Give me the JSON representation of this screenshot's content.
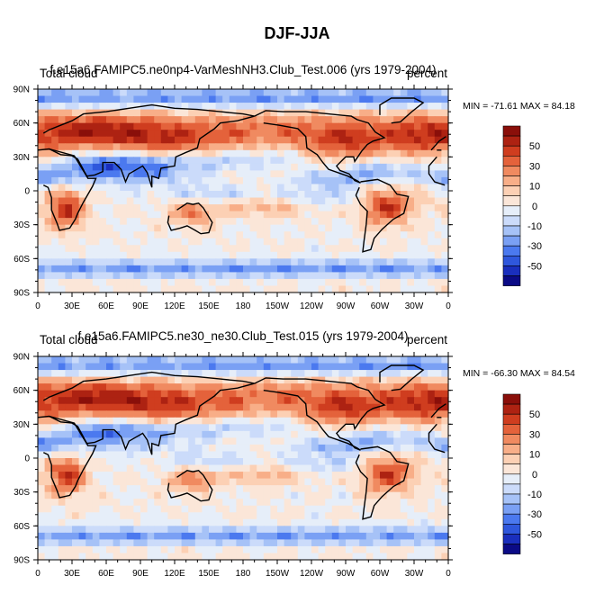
{
  "figure_title": "DJF-JJA",
  "colorbar_levels": [
    "50",
    "30",
    "10",
    "0",
    "-10",
    "-30",
    "-50"
  ],
  "colors": {
    "scale": [
      "#0b0b86",
      "#1a2fbd",
      "#2f57dc",
      "#4b79ef",
      "#7aa0f4",
      "#a6c2f7",
      "#cbdbfa",
      "#e6eef9",
      "#fbe6d8",
      "#fcd0b4",
      "#f8ae88",
      "#f08a60",
      "#e4623b",
      "#cf3d1f",
      "#ad2212",
      "#8a0f0a"
    ],
    "coastline": "#000000"
  },
  "chart_data": [
    {
      "type": "heatmap",
      "left_title": "Total cloud",
      "center_title": "f.e15a6.FAMIPC5.ne0np4-VarMeshNH3.Club_Test.006 (yrs 1979-2004)",
      "right_title": "percent",
      "stats": "MIN = -71.61 MAX =  84.18",
      "min": -71.61,
      "max": 84.18,
      "x_ticks": [
        "0",
        "30E",
        "60E",
        "90E",
        "120E",
        "150E",
        "180",
        "150W",
        "120W",
        "90W",
        "60W",
        "30W",
        "0"
      ],
      "y_ticks": [
        "90N",
        "60N",
        "30N",
        "0",
        "30S",
        "60S",
        "90S"
      ],
      "xlim": [
        0,
        360
      ],
      "ylim": [
        -90,
        90
      ]
    },
    {
      "type": "heatmap",
      "left_title": "Total cloud",
      "center_title": "f.e15a6.FAMIPC5.ne30_ne30.Club_Test.015 (yrs 1979-2004)",
      "right_title": "percent",
      "stats": "MIN = -66.30 MAX =  84.54",
      "min": -66.3,
      "max": 84.54,
      "x_ticks": [
        "0",
        "30E",
        "60E",
        "90E",
        "120E",
        "150E",
        "180",
        "150W",
        "120W",
        "90W",
        "60W",
        "30W",
        "0"
      ],
      "y_ticks": [
        "90N",
        "60N",
        "30N",
        "0",
        "30S",
        "60S",
        "90S"
      ],
      "xlim": [
        0,
        360
      ],
      "ylim": [
        -90,
        90
      ]
    }
  ]
}
